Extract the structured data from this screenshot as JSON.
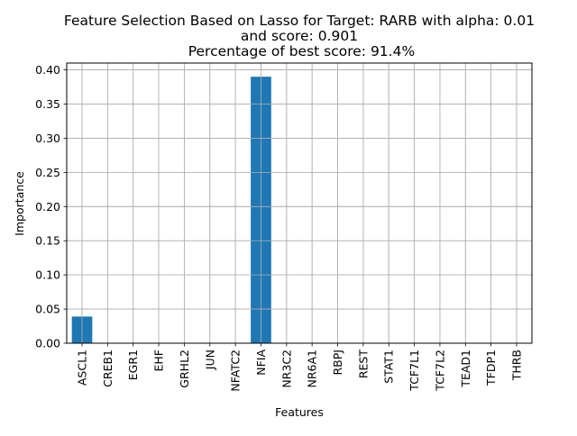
{
  "chart_data": {
    "type": "bar",
    "title_lines": [
      "Feature Selection Based on Lasso for Target: RARB with alpha: 0.01",
      "and score: 0.901",
      " Percentage of best score: 91.4%"
    ],
    "xlabel": "Features",
    "ylabel": "Importance",
    "categories": [
      "ASCL1",
      "CREB1",
      "EGR1",
      "EHF",
      "GRHL2",
      "JUN",
      "NFATC2",
      "NFIA",
      "NR3C2",
      "NR6A1",
      "RBPJ",
      "REST",
      "STAT1",
      "TCF7L1",
      "TCF7L2",
      "TEAD1",
      "TFDP1",
      "THRB"
    ],
    "values": [
      0.039,
      0,
      0,
      0,
      0,
      0,
      0,
      0.39,
      0,
      0,
      0,
      0,
      0,
      0,
      0,
      0,
      0,
      0
    ],
    "ylim": [
      0,
      0.41
    ],
    "yticks": [
      0.0,
      0.05,
      0.1,
      0.15,
      0.2,
      0.25,
      0.3,
      0.35,
      0.4
    ],
    "ytick_labels": [
      "0.00",
      "0.05",
      "0.10",
      "0.15",
      "0.20",
      "0.25",
      "0.30",
      "0.35",
      "0.40"
    ],
    "grid": true,
    "bar_color": "#1f77b4",
    "grid_color": "#b0b0b0"
  }
}
